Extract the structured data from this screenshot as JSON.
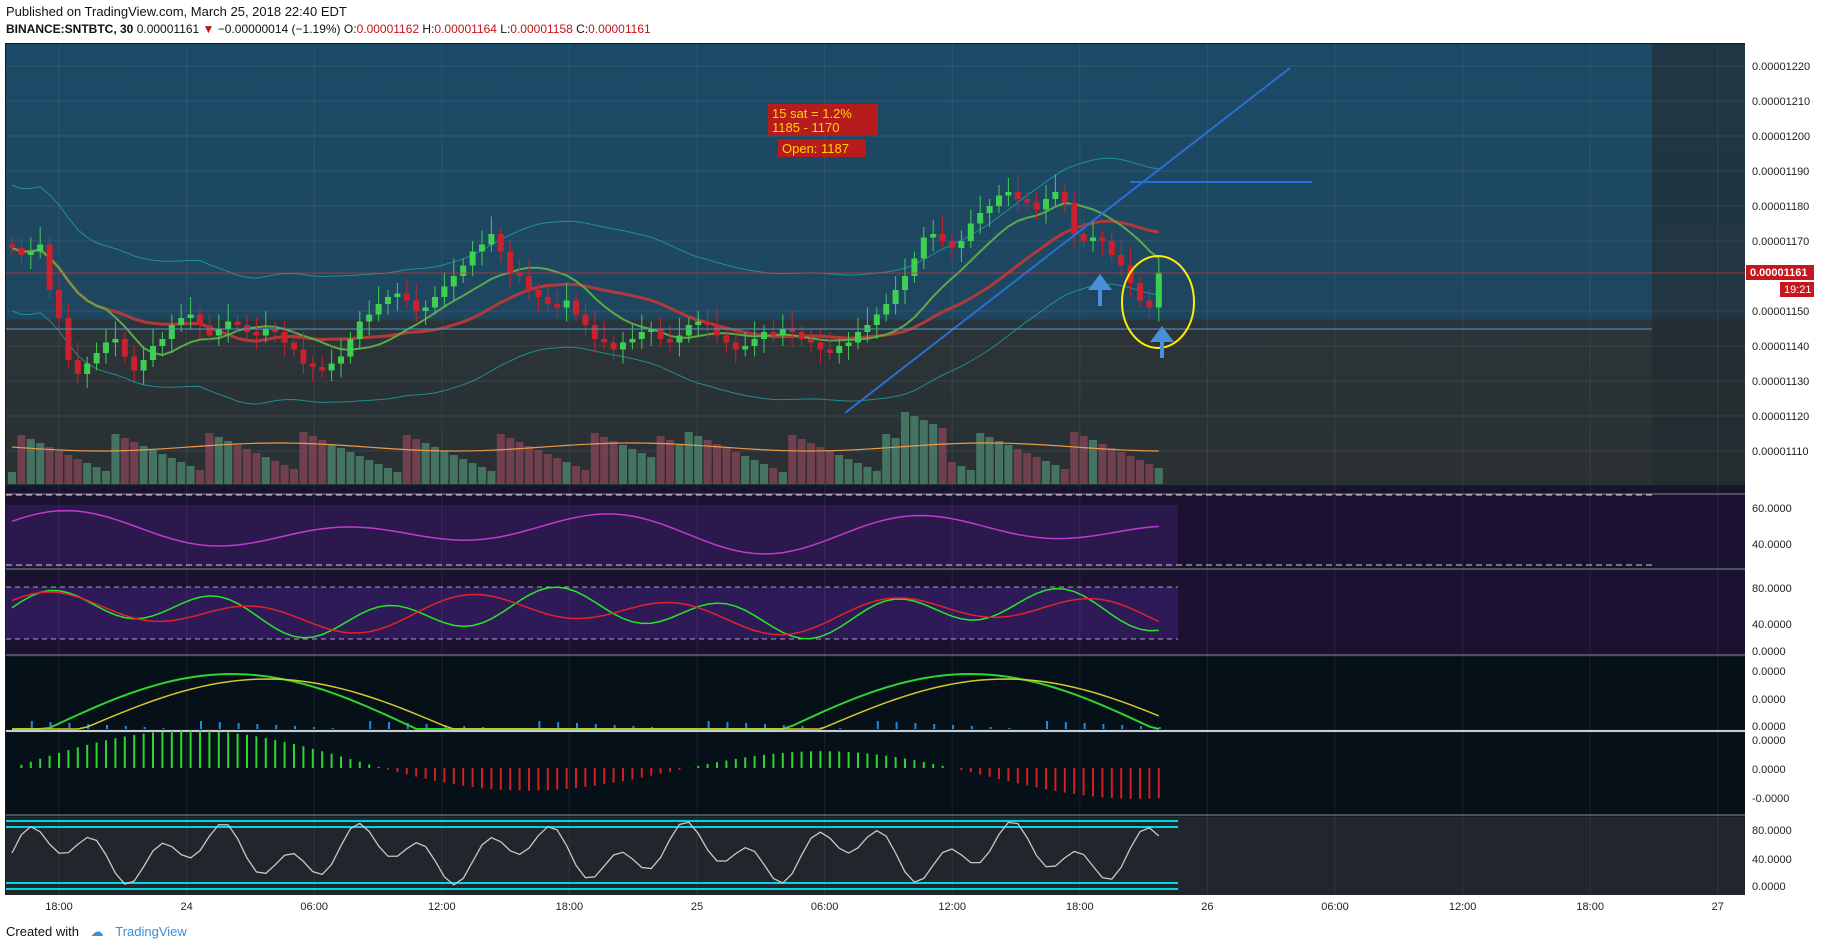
{
  "header": {
    "published": "Published on TradingView.com, March 25, 2018 22:40 EDT",
    "symbol": "BINANCE:SNTBTC, 30",
    "last": "0.00001161",
    "change": "−0.00000014 (−1.19%)",
    "o_label": "O:",
    "o_value": "0.00001162",
    "h_label": "H:",
    "h_value": "0.00001164",
    "l_label": "L:",
    "l_value": "0.00001158",
    "c_label": "C:",
    "c_value": "0.00001161"
  },
  "footer": {
    "created": "Created with",
    "brand": "TradingView"
  },
  "colors": {
    "bg_top": "#1b4a66",
    "bg_bottom": "#2c3338",
    "up": "#3ccf52",
    "down": "#c9212e",
    "trend": "#2a6fd6",
    "annot_bg": "#b71c1c",
    "annot_text": "#ffd400",
    "price_tag": "#c4161c",
    "rsi": "#c03ad0",
    "stoch_k": "#27e627",
    "stoch_d": "#e0222a",
    "accent_arrow": "#4a90d9",
    "circle": "#ffee00"
  },
  "annotations": {
    "line1": "15 sat = 1.2%",
    "line2": "1185 - 1170",
    "line3": "Open: 1187",
    "price_tag": "0.00001161",
    "time_tag": "19:21"
  },
  "chart_data": [
    {
      "type": "candlestick",
      "title": "BINANCE:SNTBTC, 30",
      "ylim": [
        1.103e-05,
        1.226e-05
      ],
      "price_ticks": [
        "0.00001220",
        "0.00001210",
        "0.00001200",
        "0.00001190",
        "0.00001180",
        "0.00001170",
        "0.00001150",
        "0.00001140",
        "0.00001130",
        "0.00001120",
        "0.00001110"
      ],
      "x_ticks": [
        "18:00",
        "24",
        "06:00",
        "12:00",
        "18:00",
        "25",
        "06:00",
        "12:00",
        "18:00",
        "26",
        "06:00",
        "12:00",
        "18:00",
        "27"
      ],
      "close": [
        1168,
        1166,
        1167,
        1169,
        1156,
        1148,
        1136,
        1132,
        1135,
        1138,
        1141,
        1142,
        1137,
        1133,
        1136,
        1140,
        1142,
        1146,
        1148,
        1149,
        1146,
        1143,
        1145,
        1147,
        1146,
        1144,
        1143,
        1145,
        1144,
        1141,
        1139,
        1135,
        1134,
        1133,
        1135,
        1137,
        1142,
        1147,
        1149,
        1152,
        1154,
        1155,
        1153,
        1150,
        1151,
        1154,
        1157,
        1160,
        1163,
        1167,
        1169,
        1172,
        1167,
        1161,
        1160,
        1156,
        1154,
        1152,
        1151,
        1153,
        1149,
        1146,
        1142,
        1141,
        1139,
        1141,
        1142,
        1144,
        1145,
        1142,
        1141,
        1143,
        1146,
        1147,
        1146,
        1143,
        1141,
        1139,
        1140,
        1142,
        1144,
        1143,
        1145,
        1144,
        1142,
        1141,
        1139,
        1138,
        1140,
        1141,
        1144,
        1146,
        1149,
        1152,
        1156,
        1160,
        1165,
        1171,
        1172,
        1170,
        1168,
        1170,
        1175,
        1178,
        1180,
        1183,
        1184,
        1182,
        1181,
        1179,
        1182,
        1184,
        1181,
        1172,
        1170,
        1171,
        1170,
        1166,
        1163,
        1158,
        1153,
        1151,
        1161
      ],
      "volume_ma_visible": true,
      "bollinger_bands": true
    },
    {
      "type": "line",
      "name": "",
      "ticks": [
        "60.0000",
        "40.0000"
      ]
    },
    {
      "type": "line",
      "name": "",
      "ticks": [
        "80.0000",
        "40.0000",
        "0.0000"
      ]
    },
    {
      "type": "line",
      "name": "",
      "ticks": [
        "0.0000",
        "0.0000",
        "0.0000"
      ]
    },
    {
      "type": "bar",
      "name": "",
      "ticks": [
        "0.0000",
        "0.0000",
        "-0.0000"
      ]
    },
    {
      "type": "line",
      "name": "",
      "ticks": [
        "80.0000",
        "40.0000",
        "0.0000"
      ]
    }
  ]
}
